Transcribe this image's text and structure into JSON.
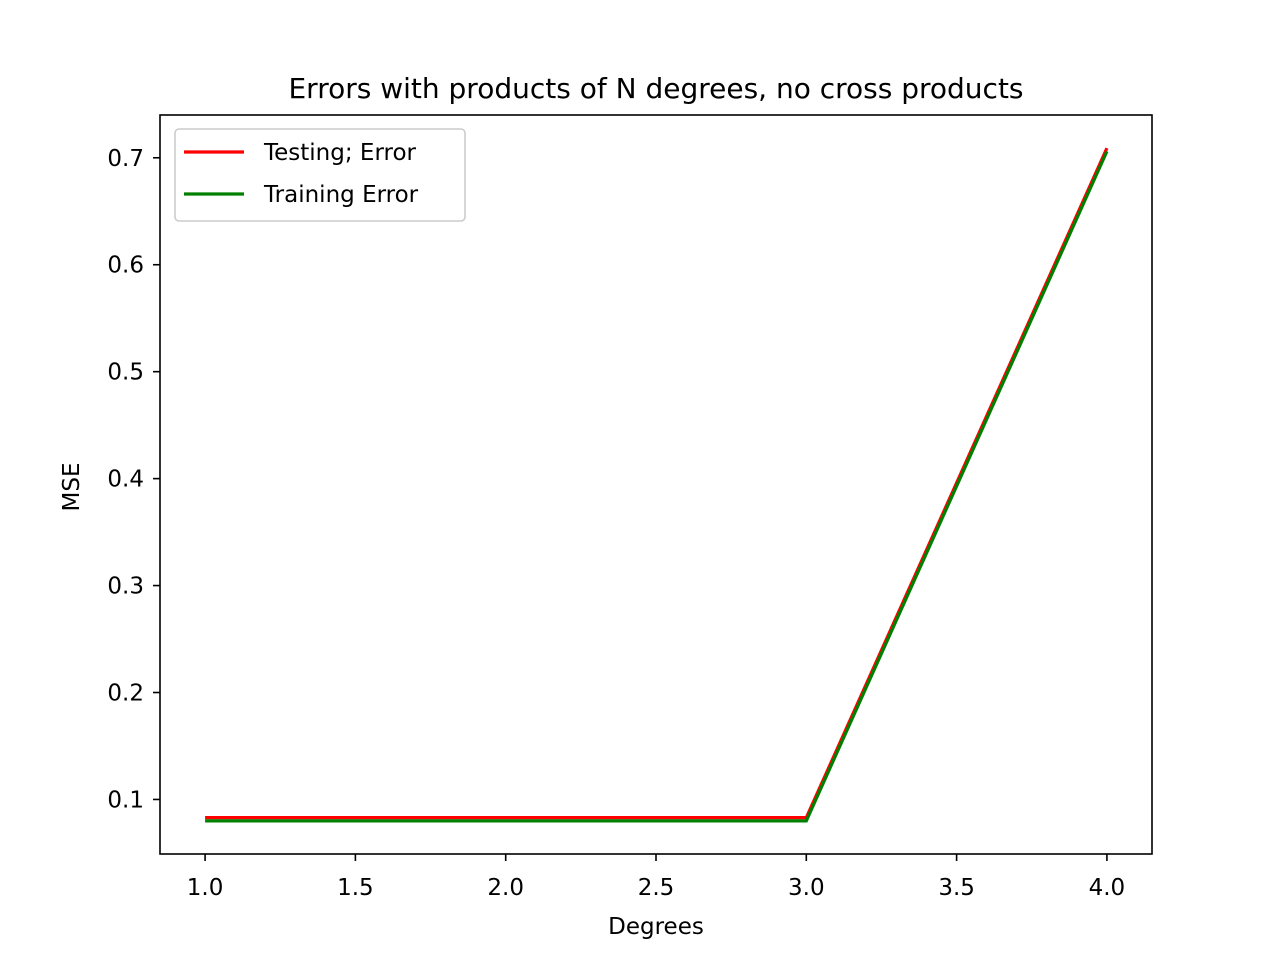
{
  "chart_data": {
    "type": "line",
    "title": "Errors with products of N degrees, no cross products",
    "xlabel": "Degrees",
    "ylabel": "MSE",
    "x": [
      1.0,
      2.0,
      3.0,
      4.0
    ],
    "series": [
      {
        "name": "Testing; Error",
        "color": "#ff0000",
        "values": [
          0.083,
          0.083,
          0.083,
          0.709
        ]
      },
      {
        "name": "Training Error",
        "color": "#008000",
        "values": [
          0.08,
          0.08,
          0.08,
          0.706
        ]
      }
    ],
    "xlim": [
      0.85,
      4.15
    ],
    "ylim": [
      0.049,
      0.74
    ],
    "xticks": [
      1.0,
      1.5,
      2.0,
      2.5,
      3.0,
      3.5,
      4.0
    ],
    "xtick_labels": [
      "1.0",
      "1.5",
      "2.0",
      "2.5",
      "3.0",
      "3.5",
      "4.0"
    ],
    "yticks": [
      0.1,
      0.2,
      0.3,
      0.4,
      0.5,
      0.6,
      0.7
    ],
    "ytick_labels": [
      "0.1",
      "0.2",
      "0.3",
      "0.4",
      "0.5",
      "0.6",
      "0.7"
    ],
    "grid": false,
    "legend_position": "top-left"
  }
}
